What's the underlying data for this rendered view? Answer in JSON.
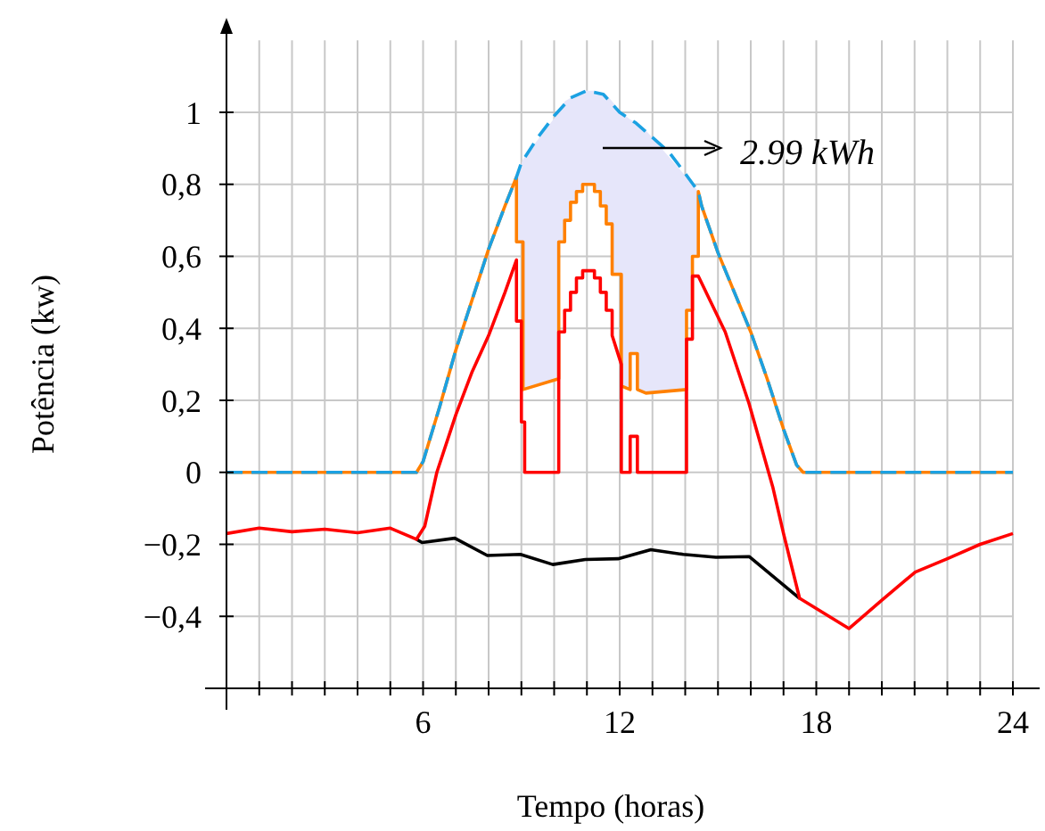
{
  "chart_data": {
    "type": "line",
    "xlabel": "Tempo (horas)",
    "ylabel": "Potência (kw)",
    "xlim": [
      0,
      24
    ],
    "ylim": [
      -0.6,
      1.2
    ],
    "xticks": [
      {
        "value": 1,
        "label": null
      },
      {
        "value": 2,
        "label": null
      },
      {
        "value": 3,
        "label": null
      },
      {
        "value": 4,
        "label": null
      },
      {
        "value": 5,
        "label": null
      },
      6,
      {
        "value": 7,
        "label": null
      },
      {
        "value": 8,
        "label": null
      },
      {
        "value": 9,
        "label": null
      },
      {
        "value": 10,
        "label": null
      },
      {
        "value": 11,
        "label": null
      },
      12,
      {
        "value": 13,
        "label": null
      },
      {
        "value": 14,
        "label": null
      },
      {
        "value": 15,
        "label": null
      },
      {
        "value": 16,
        "label": null
      },
      {
        "value": 17,
        "label": null
      },
      18,
      {
        "value": 19,
        "label": null
      },
      {
        "value": 20,
        "label": null
      },
      {
        "value": 21,
        "label": null
      },
      {
        "value": 22,
        "label": null
      },
      {
        "value": 23,
        "label": null
      },
      24
    ],
    "yticks": [
      {
        "value": -0.4,
        "label": "−0,4"
      },
      {
        "value": -0.2,
        "label": "−0,2"
      },
      0,
      {
        "value": 0.2,
        "label": "0,2"
      },
      {
        "value": 0.4,
        "label": "0,4"
      },
      {
        "value": 0.6,
        "label": "0,6"
      },
      {
        "value": 0.8,
        "label": "0,8"
      },
      1
    ],
    "grid": true,
    "marker": "none",
    "annotations": [
      "2.99 kWh"
    ],
    "series": [
      {
        "color": "#000000",
        "x": [
          5.8,
          5.97,
          6.97,
          7.96,
          8.97,
          9.96,
          10.95,
          11.95,
          12.95,
          13.94,
          14.94,
          15.95,
          17.49
        ],
        "values": [
          -0.186,
          -0.195,
          -0.183,
          -0.231,
          -0.228,
          -0.256,
          -0.242,
          -0.24,
          -0.215,
          -0.228,
          -0.236,
          -0.234,
          -0.35
        ]
      },
      {
        "color": "#ff0000",
        "x": [
          0,
          1,
          2,
          3,
          4,
          5,
          5.8,
          6.05,
          6.42,
          7,
          7.5,
          8,
          8.5,
          8.85,
          8.85,
          9.0,
          9.0,
          9.1,
          9.1,
          10.14,
          10.14,
          10.32,
          10.32,
          10.5,
          10.5,
          10.68,
          10.68,
          10.87,
          10.87,
          11.23,
          11.23,
          11.41,
          11.41,
          11.59,
          11.59,
          11.77,
          11.77,
          12.05,
          12.05,
          12.32,
          12.32,
          12.54,
          12.54,
          14.04,
          14.04,
          14.22,
          14.22,
          14.4,
          15.22,
          15.95,
          16.67,
          17.0,
          17.49,
          19.0,
          20.0,
          21.02,
          22,
          23,
          24
        ],
        "values": [
          -0.17,
          -0.155,
          -0.165,
          -0.158,
          -0.168,
          -0.155,
          -0.186,
          -0.15,
          0,
          0.16,
          0.28,
          0.38,
          0.5,
          0.59,
          0.42,
          0.42,
          0.14,
          0.14,
          0,
          0,
          0.39,
          0.39,
          0.45,
          0.45,
          0.5,
          0.5,
          0.54,
          0.54,
          0.56,
          0.56,
          0.54,
          0.54,
          0.5,
          0.5,
          0.45,
          0.45,
          0.38,
          0.3,
          0,
          0,
          0.1,
          0.1,
          0,
          0,
          0.37,
          0.37,
          0.545,
          0.545,
          0.39,
          0.19,
          -0.04,
          -0.17,
          -0.35,
          -0.434,
          -0.355,
          -0.277,
          -0.24,
          -0.2,
          -0.17
        ]
      },
      {
        "color": "#ff8000",
        "lower": [
          null,
          null,
          null,
          null,
          null,
          null,
          null,
          null,
          0.82,
          0.64,
          0.64,
          0.23,
          0.26,
          0.64,
          0.64,
          0.7,
          0.7,
          0.75,
          0.75,
          0.78,
          0.78,
          0.8,
          0.8,
          0.78,
          0.78,
          0.74,
          0.74,
          0.69,
          0.69,
          0.55,
          0.55,
          0.24,
          0.23,
          0.33,
          0.33,
          0.23,
          0.22,
          0.23,
          0.45,
          0.45,
          0.6,
          0.6,
          0.78,
          null,
          null,
          null,
          null,
          null,
          null,
          null,
          null,
          null
        ],
        "upper": [
          null,
          null,
          null,
          null,
          null,
          null,
          null,
          null,
          0.82,
          0.82,
          0.87,
          0.87,
          1.0,
          1.0,
          1.03,
          1.03,
          1.04,
          1.04,
          1.05,
          1.05,
          1.06,
          1.06,
          1.06,
          1.06,
          1.05,
          1.05,
          1.05,
          1.05,
          1.03,
          1.03,
          1.0,
          1.0,
          0.98,
          0.98,
          0.97,
          0.97,
          0.95,
          0.82,
          0.82,
          0.8,
          0.8,
          0.78,
          0.78,
          null,
          null,
          null,
          null,
          null,
          null,
          null,
          null,
          null
        ],
        "x": [
          0,
          5.8,
          6,
          6.5,
          7,
          7.5,
          8,
          8.5,
          8.85,
          8.85,
          9.05,
          9.05,
          10.14,
          10.14,
          10.32,
          10.32,
          10.5,
          10.5,
          10.68,
          10.68,
          10.87,
          10.87,
          11.23,
          11.23,
          11.41,
          11.41,
          11.59,
          11.59,
          11.77,
          11.77,
          12.05,
          12.05,
          12.32,
          12.32,
          12.54,
          12.54,
          12.8,
          14.04,
          14.04,
          14.22,
          14.22,
          14.4,
          14.4,
          14.5,
          15,
          15.5,
          16,
          16.5,
          17,
          17.4,
          17.6,
          24
        ],
        "values": [
          0,
          0,
          0.03,
          0.18,
          0.34,
          0.48,
          0.62,
          0.74,
          0.82,
          0.64,
          0.64,
          0.23,
          0.26,
          0.64,
          0.64,
          0.7,
          0.7,
          0.75,
          0.75,
          0.78,
          0.78,
          0.8,
          0.8,
          0.78,
          0.78,
          0.74,
          0.74,
          0.69,
          0.69,
          0.55,
          0.55,
          0.24,
          0.23,
          0.33,
          0.33,
          0.23,
          0.22,
          0.23,
          0.45,
          0.45,
          0.6,
          0.6,
          0.78,
          0.74,
          0.61,
          0.5,
          0.39,
          0.26,
          0.12,
          0.02,
          0,
          0
        ]
      },
      {
        "color": "#1ba1e2",
        "line_style": "dashed",
        "x": [
          0,
          5.8,
          6,
          6.5,
          7,
          7.5,
          8,
          8.5,
          8.85,
          9,
          9.5,
          10,
          10.5,
          11,
          11.5,
          12,
          12.5,
          13,
          13.5,
          14,
          14.4,
          14.5,
          15,
          15.5,
          16,
          16.5,
          17,
          17.4,
          17.6,
          24
        ],
        "values": [
          0,
          0,
          0.03,
          0.18,
          0.34,
          0.48,
          0.62,
          0.74,
          0.82,
          0.86,
          0.93,
          0.99,
          1.04,
          1.06,
          1.05,
          1.0,
          0.97,
          0.93,
          0.89,
          0.83,
          0.78,
          0.74,
          0.61,
          0.5,
          0.39,
          0.26,
          0.12,
          0.02,
          0,
          0
        ]
      }
    ]
  }
}
